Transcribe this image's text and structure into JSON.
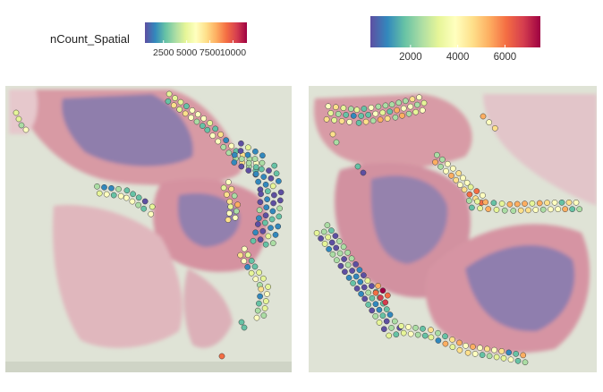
{
  "legend": {
    "title": "nCount_Spatial"
  },
  "colors": {
    "ramp": [
      "#5e4fa2",
      "#3288bd",
      "#66c2a5",
      "#abdda4",
      "#e6f598",
      "#ffffbf",
      "#fee08b",
      "#fdae61",
      "#f46d43",
      "#d53e4f",
      "#9e0142"
    ],
    "tissue_background": "#dfe3d6",
    "tissue_pink": "#d99aa6",
    "tissue_purple": "#8e7bab",
    "spot_outline": "#3b3b3b"
  },
  "chart_data": [
    {
      "type": "scatter",
      "panel": "left",
      "title": "",
      "colorbar": {
        "label": "nCount_Spatial",
        "range": [
          500,
          11500
        ],
        "ticks": [
          "2500",
          "5000",
          "7500",
          "10000"
        ],
        "tick_values": [
          2500,
          5000,
          7500,
          10000
        ]
      }
    },
    {
      "type": "scatter",
      "panel": "right",
      "title": "",
      "colorbar": {
        "label": "",
        "range": [
          300,
          7500
        ],
        "ticks": [
          "2000",
          "4000",
          "6000"
        ],
        "tick_values": [
          2000,
          4000,
          6000
        ]
      }
    }
  ]
}
